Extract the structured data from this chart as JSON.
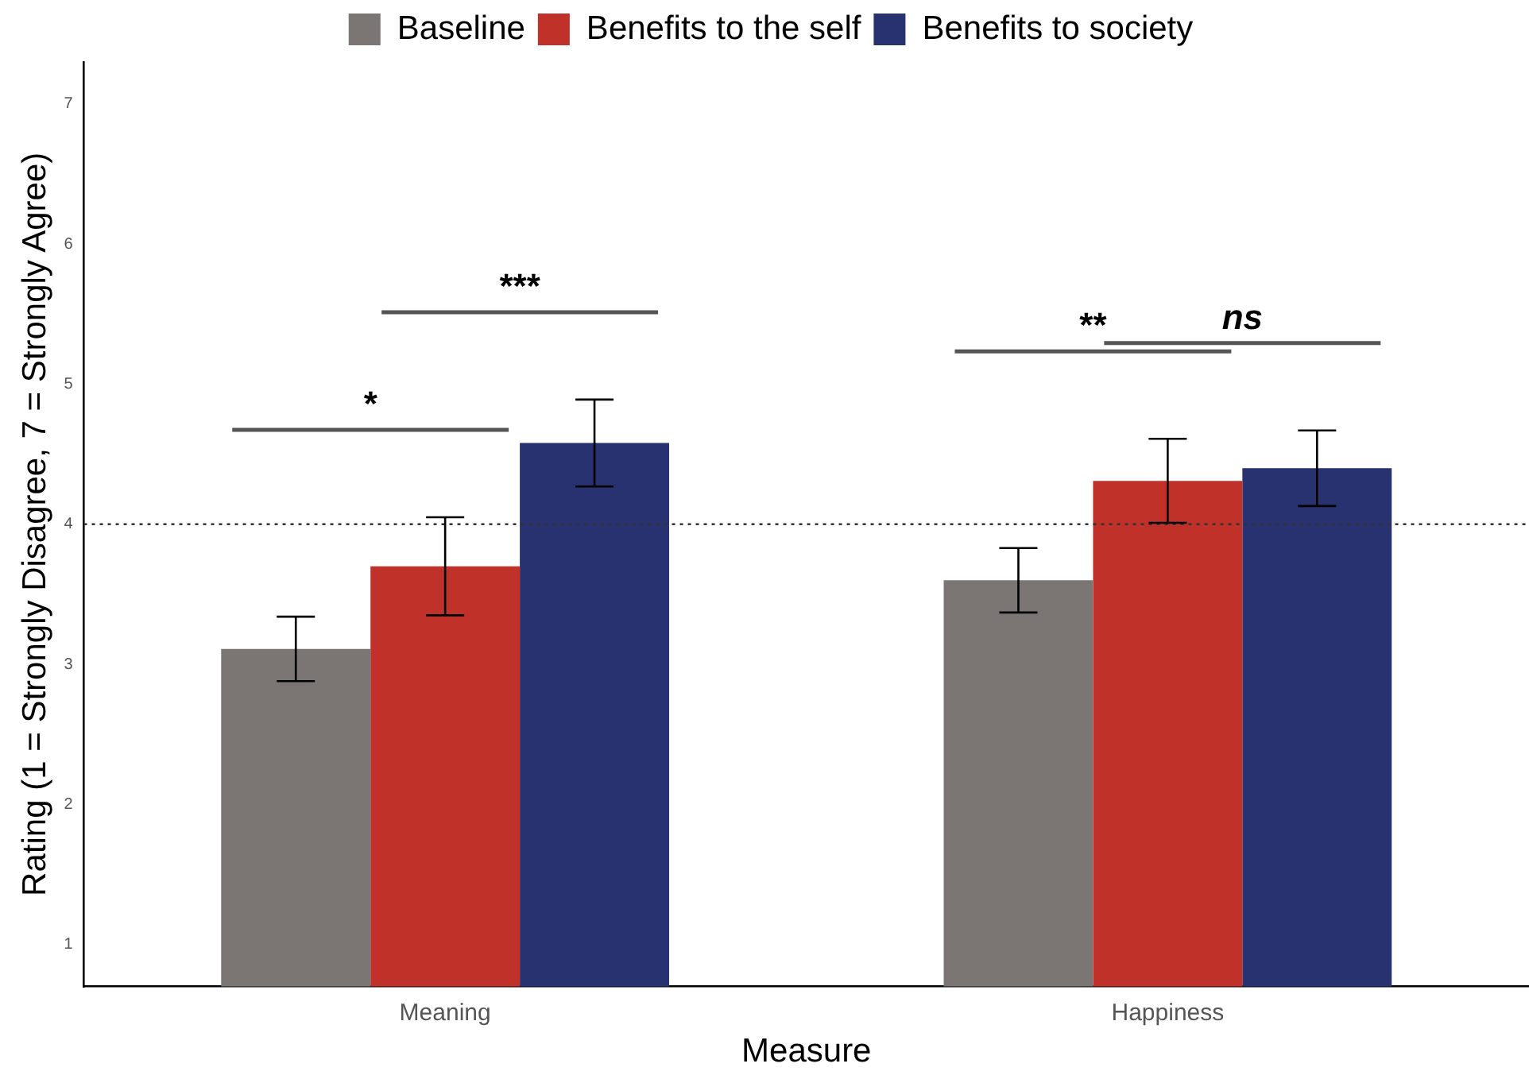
{
  "chart_data": {
    "type": "bar",
    "xlabel": "Measure",
    "ylabel": "Rating (1 = Strongly Disagree, 7 = Strongly Agree)",
    "categories": [
      "Meaning",
      "Happiness"
    ],
    "series": [
      {
        "name": "Baseline",
        "color": "#7b7674",
        "values": [
          3.11,
          3.6
        ],
        "errors": [
          0.23,
          0.23
        ]
      },
      {
        "name": "Benefits to the self",
        "color": "#c0312a",
        "values": [
          3.7,
          4.31
        ],
        "errors": [
          0.35,
          0.3
        ]
      },
      {
        "name": "Benefits to society",
        "color": "#283270",
        "values": [
          4.58,
          4.4
        ],
        "errors": [
          0.31,
          0.27
        ]
      }
    ],
    "ylim": [
      0.7,
      7.3
    ],
    "yticks": [
      1,
      2,
      3,
      4,
      5,
      6,
      7
    ],
    "grid": false,
    "legend": "top",
    "ref_lines": [
      {
        "axis": "y",
        "value": 4,
        "line_style": "dotted",
        "color": "#333333"
      }
    ],
    "annotations": [
      "*",
      "***",
      "**",
      "ns"
    ]
  }
}
